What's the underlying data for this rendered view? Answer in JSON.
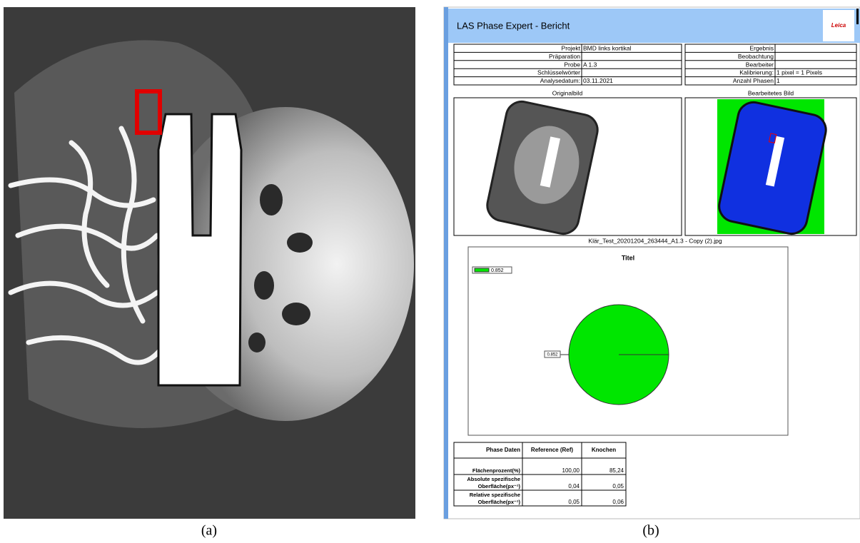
{
  "figure": {
    "panel_labels": [
      "(a)",
      "(b)"
    ]
  },
  "report": {
    "title": "LAS Phase Expert - Bericht",
    "logo": "Leica",
    "info_left": [
      {
        "label": "Projekt",
        "value": "BMD links kortikal"
      },
      {
        "label": "Präparation"
      },
      {
        "label": "Probe",
        "value": "A 1.3"
      },
      {
        "label": "Schlüsselwörter"
      },
      {
        "label": "Analysedatum:",
        "value": "03.11.2021"
      }
    ],
    "info_right": [
      {
        "label": "Ergebnis"
      },
      {
        "label": "Beobachtung"
      },
      {
        "label": "Bearbeiter"
      },
      {
        "label": "Kalibrierung:",
        "value": "1 pixel = 1 Pixels"
      },
      {
        "label": "Anzahl Phasen",
        "value": "1"
      }
    ],
    "image_captions": [
      "Originalbild",
      "Bearbeitetes Bild"
    ],
    "filename": "Klär_Test_20201204_263444_A1.3 - Copy (2).jpg",
    "chart": {
      "type": "pie",
      "title": "Titel",
      "legend": [
        "0.852"
      ],
      "values": [
        0.852
      ],
      "value_labels": [
        "0.852"
      ],
      "color": "#00e600"
    },
    "table": {
      "header": [
        "Phase Daten",
        "Reference (Ref)",
        "Knochen"
      ],
      "rows": [
        {
          "label_lines": [
            "Flächenprozent(%)"
          ],
          "cells": [
            "100,00",
            "85,24"
          ]
        },
        {
          "label_lines": [
            "Absolute spezifische",
            "Oberfläche(px⁻¹)"
          ],
          "cells": [
            "0,04",
            "0,05"
          ]
        },
        {
          "label_lines": [
            "Relative spezifische",
            "Oberfläche(px⁻¹)"
          ],
          "cells": [
            "0,05",
            "0,06"
          ]
        }
      ]
    }
  }
}
